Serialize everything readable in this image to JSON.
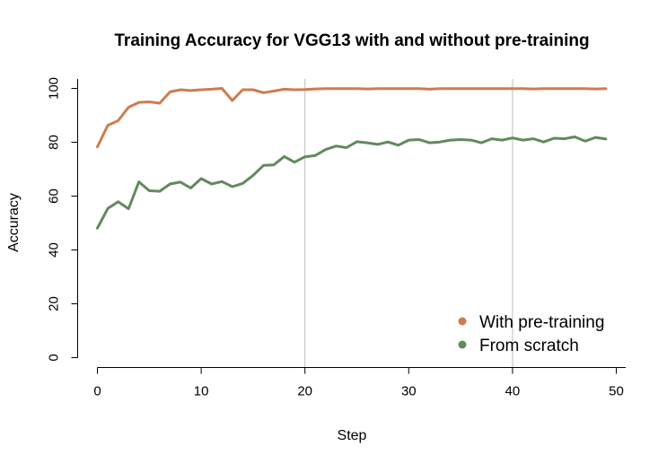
{
  "chart_data": {
    "type": "line",
    "title": "Training Accuracy for VGG13 with and without pre-training",
    "xlabel": "Step",
    "ylabel": "Accuracy",
    "xlim": [
      0,
      50
    ],
    "ylim": [
      0,
      100
    ],
    "xticks": [
      0,
      10,
      20,
      30,
      40,
      50
    ],
    "yticks": [
      0,
      20,
      40,
      60,
      80,
      100
    ],
    "vlines": [
      20,
      40
    ],
    "grid": false,
    "legend_position": "bottom-right",
    "series": [
      {
        "name": "With pre-training",
        "color": "#cf7b4f",
        "x": [
          0,
          1,
          2,
          3,
          4,
          5,
          6,
          7,
          8,
          9,
          10,
          11,
          12,
          13,
          14,
          15,
          16,
          17,
          18,
          19,
          20,
          21,
          22,
          23,
          24,
          25,
          26,
          27,
          28,
          29,
          30,
          31,
          32,
          33,
          34,
          35,
          36,
          37,
          38,
          39,
          40,
          41,
          42,
          43,
          44,
          45,
          46,
          47,
          48,
          49
        ],
        "values": [
          78.3,
          86.3,
          88.0,
          93.0,
          94.8,
          95.0,
          94.5,
          98.7,
          99.5,
          99.2,
          99.5,
          99.7,
          100.0,
          95.5,
          99.5,
          99.5,
          98.4,
          99.0,
          99.7,
          99.5,
          99.6,
          99.8,
          99.9,
          99.9,
          99.9,
          99.9,
          99.8,
          99.9,
          99.9,
          99.9,
          99.9,
          99.9,
          99.7,
          99.9,
          99.9,
          99.9,
          99.9,
          99.9,
          99.9,
          99.9,
          99.9,
          99.9,
          99.8,
          99.9,
          99.9,
          99.9,
          99.9,
          99.9,
          99.8,
          99.9
        ]
      },
      {
        "name": "From scratch",
        "color": "#628a5d",
        "x": [
          0,
          1,
          2,
          3,
          4,
          5,
          6,
          7,
          8,
          9,
          10,
          11,
          12,
          13,
          14,
          15,
          16,
          17,
          18,
          19,
          20,
          21,
          22,
          23,
          24,
          25,
          26,
          27,
          28,
          29,
          30,
          31,
          32,
          33,
          34,
          35,
          36,
          37,
          38,
          39,
          40,
          41,
          42,
          43,
          44,
          45,
          46,
          47,
          48,
          49
        ],
        "values": [
          48.1,
          55.4,
          57.9,
          55.3,
          65.3,
          62.0,
          61.8,
          64.5,
          65.2,
          63.0,
          66.5,
          64.5,
          65.4,
          63.5,
          64.7,
          67.7,
          71.4,
          71.6,
          74.7,
          72.6,
          74.6,
          75.1,
          77.3,
          78.6,
          78.0,
          80.2,
          79.8,
          79.2,
          80.1,
          78.9,
          80.8,
          81.0,
          79.8,
          80.1,
          80.8,
          81.0,
          80.8,
          79.8,
          81.3,
          80.8,
          81.6,
          80.8,
          81.3,
          80.1,
          81.5,
          81.3,
          82.0,
          80.4,
          81.8,
          81.2
        ]
      }
    ]
  }
}
